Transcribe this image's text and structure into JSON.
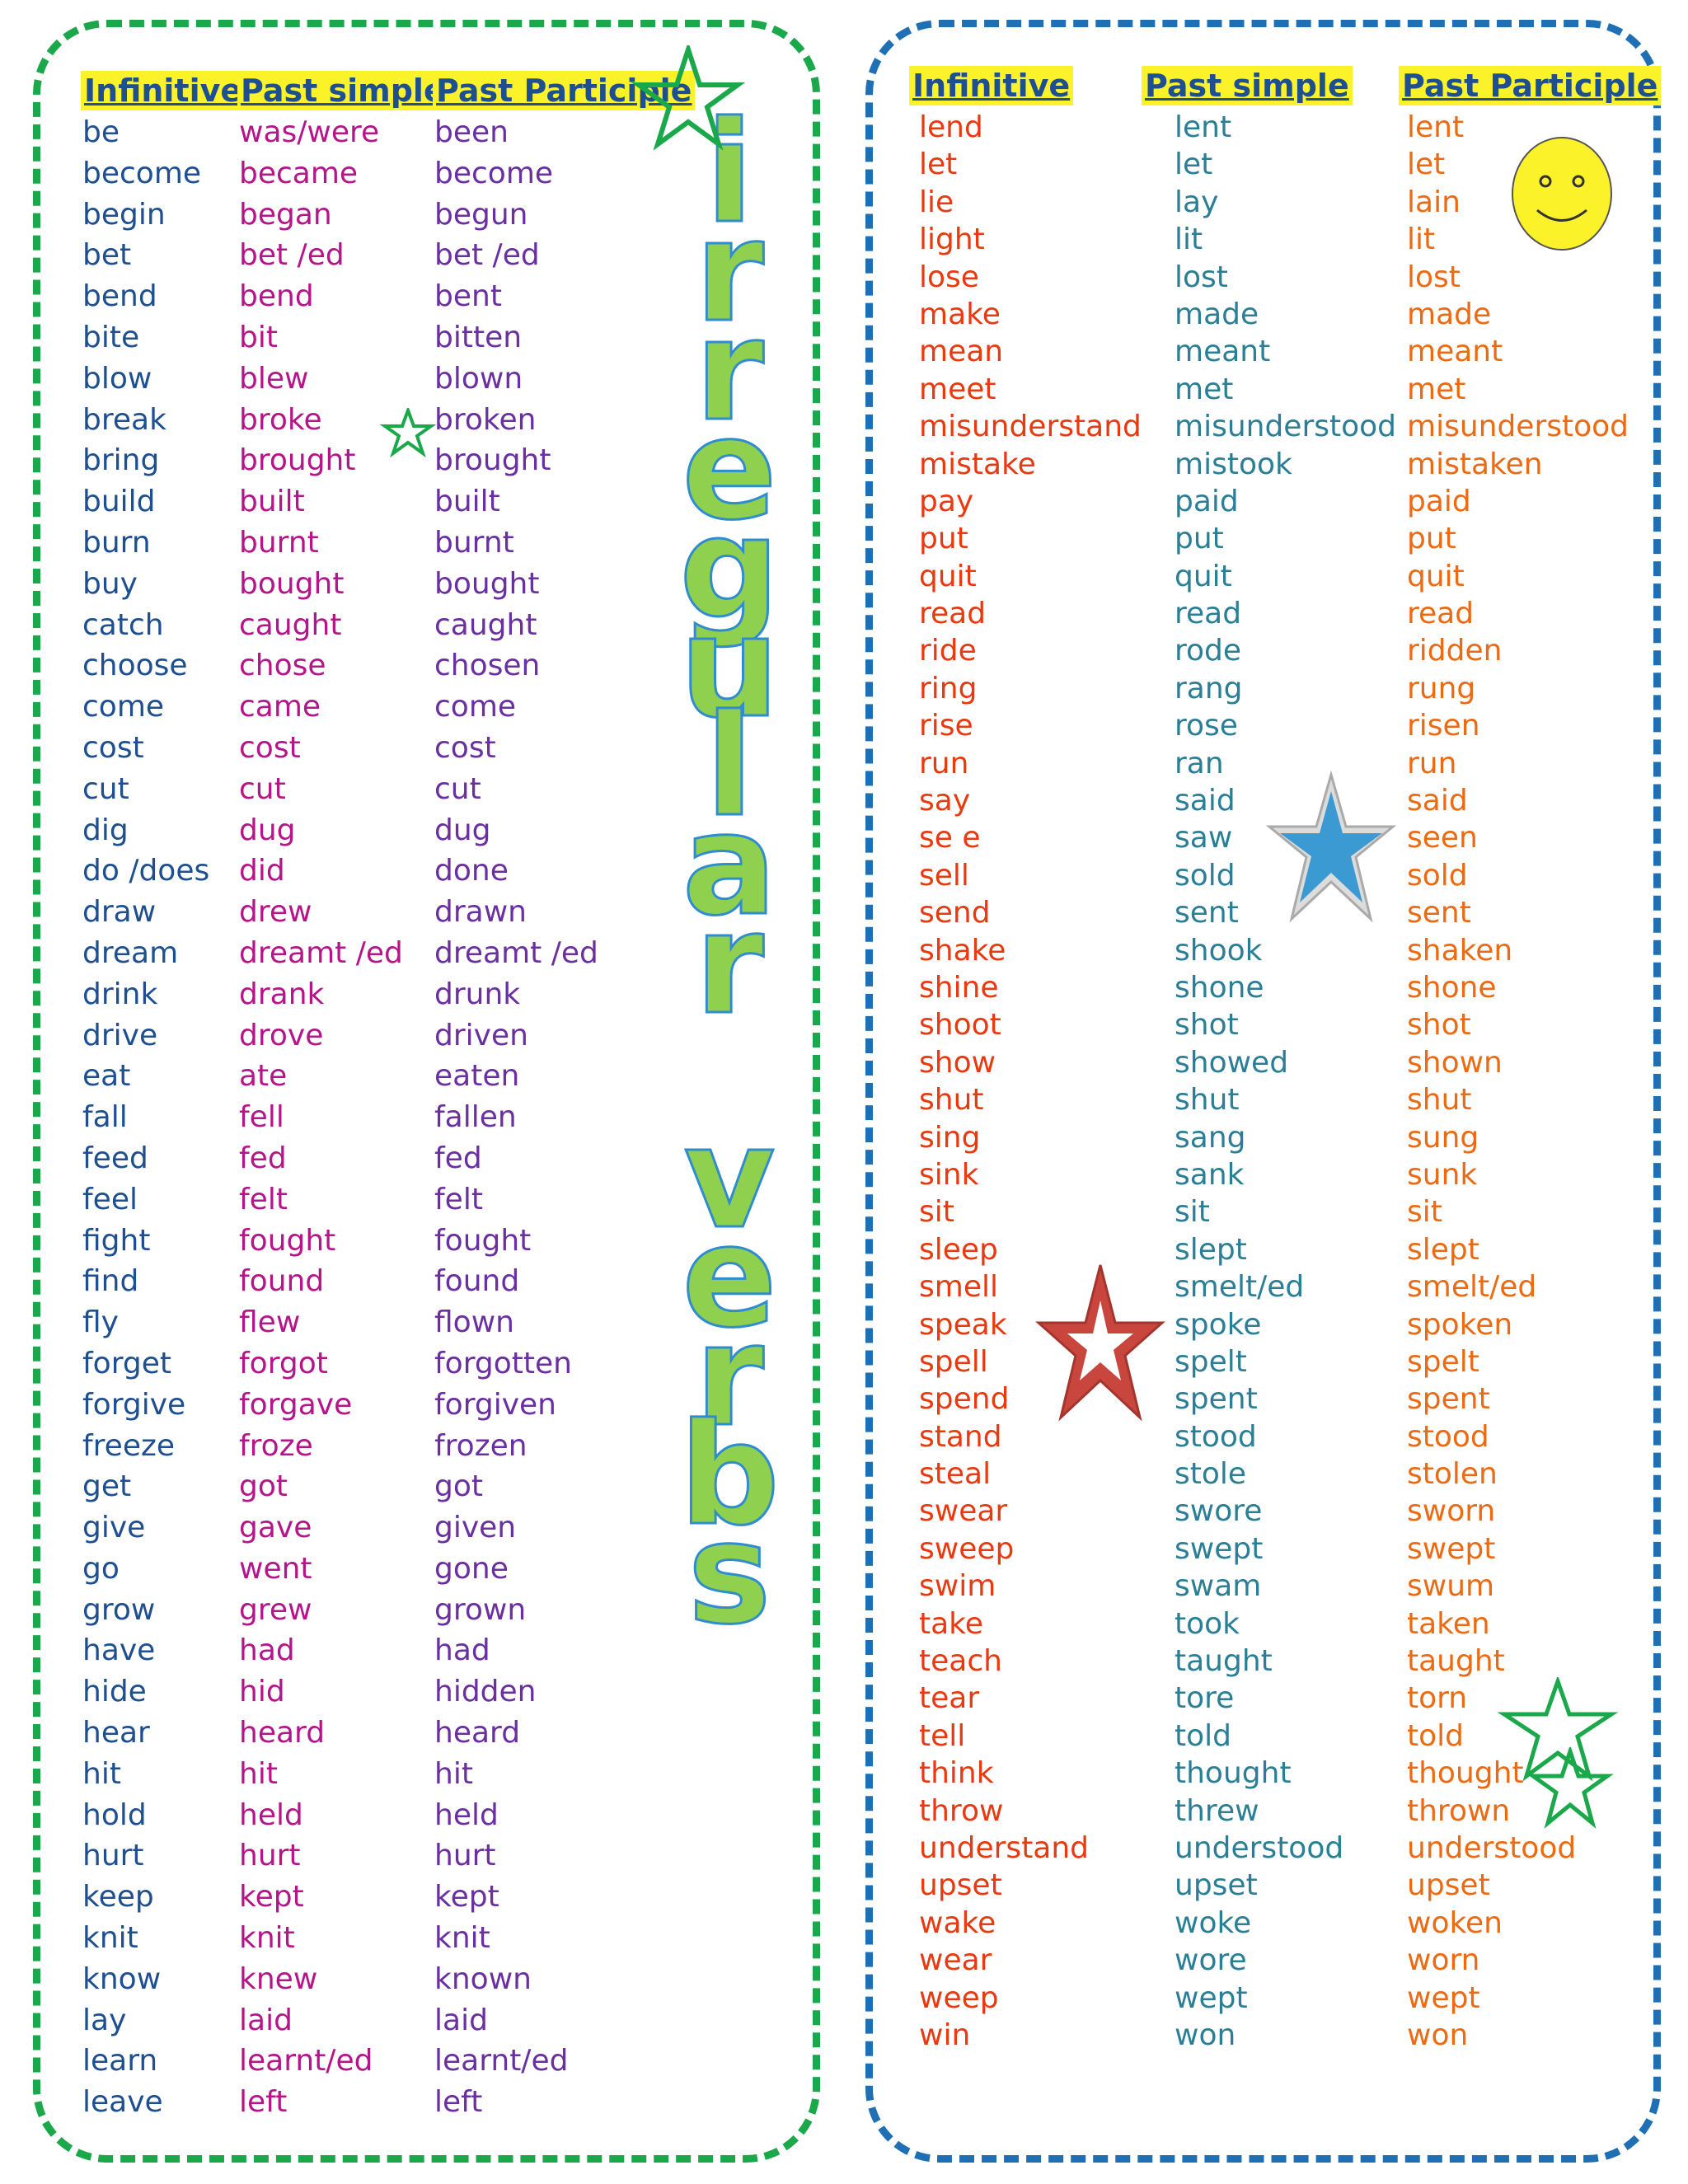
{
  "title": "irregular verbs",
  "headers": {
    "infinitive": "Infinitive",
    "past_simple": "Past simple",
    "past_participle": "Past Participle"
  },
  "left_table": {
    "infinitive": [
      "be",
      "become",
      "begin",
      "bet",
      "bend",
      "bite",
      "blow",
      "break",
      "bring",
      "build",
      "burn",
      "buy",
      "catch",
      "choose",
      "come",
      "cost",
      "cut",
      "dig",
      "do /does",
      "draw",
      "dream",
      "drink",
      "drive",
      "eat",
      "fall",
      "feed",
      "feel",
      "fight",
      "find",
      "fly",
      "forget",
      "forgive",
      "freeze",
      "get",
      "give",
      "go",
      "grow",
      "have",
      "hide",
      "hear",
      "hit",
      "hold",
      "hurt",
      "keep",
      "knit",
      "know",
      "lay",
      "learn",
      "leave"
    ],
    "past_simple": [
      "was/were",
      "became",
      "began",
      "bet /ed",
      "bend",
      "bit",
      "blew",
      "broke",
      "brought",
      "built",
      "burnt",
      "bought",
      "caught",
      "chose",
      "came",
      "cost",
      "cut",
      "dug",
      "did",
      "drew",
      "dreamt /ed",
      "drank",
      "drove",
      "ate",
      "fell",
      "fed",
      "felt",
      "fought",
      "found",
      "flew",
      "forgot",
      "forgave",
      "froze",
      "got",
      "gave",
      "went",
      "grew",
      "had",
      "hid",
      "heard",
      "hit",
      "held",
      "hurt",
      "kept",
      "knit",
      "knew",
      "laid",
      "learnt/ed",
      "left"
    ],
    "past_participle": [
      "been",
      "become",
      "begun",
      "bet /ed",
      "bent",
      "bitten",
      "blown",
      "broken",
      "brought",
      "built",
      "burnt",
      "bought",
      "caught",
      "chosen",
      "come",
      "cost",
      "cut",
      "dug",
      "done",
      "drawn",
      "dreamt /ed",
      "drunk",
      "driven",
      "eaten",
      "fallen",
      "fed",
      "felt",
      "fought",
      "found",
      "flown",
      "forgotten",
      "forgiven",
      "frozen",
      "got",
      "given",
      "gone",
      "grown",
      "had",
      "hidden",
      "heard",
      "hit",
      "held",
      "hurt",
      "kept",
      "knit",
      "known",
      "laid",
      "learnt/ed",
      "left"
    ]
  },
  "right_table": {
    "infinitive": [
      "lend",
      "let",
      "lie",
      "light",
      "lose",
      "make",
      "mean",
      "meet",
      "misunderstand",
      "mistake",
      "pay",
      "put",
      "quit",
      "read",
      "ride",
      "ring",
      "rise",
      "run",
      "say",
      "se e",
      "sell",
      "send",
      "shake",
      "shine",
      "shoot",
      "show",
      "shut",
      "sing",
      "sink",
      "sit",
      "sleep",
      "smell",
      "speak",
      "spell",
      "spend",
      "stand",
      "steal",
      "swear",
      "sweep",
      "swim",
      "take",
      "teach",
      "tear",
      "tell",
      "think",
      "throw",
      "understand",
      "upset",
      "wake",
      "wear",
      "weep",
      "win"
    ],
    "past_simple": [
      "lent",
      "let",
      "lay",
      "lit",
      "lost",
      "made",
      "meant",
      "met",
      "misunderstood",
      "mistook",
      "paid",
      "put",
      "quit",
      "read",
      "rode",
      "rang",
      "rose",
      "ran",
      "said",
      "saw",
      "sold",
      "sent",
      "shook",
      "shone",
      "shot",
      "showed",
      "shut",
      "sang",
      "sank",
      "sit",
      "slept",
      "smelt/ed",
      "spoke",
      "spelt",
      "spent",
      "stood",
      "stole",
      "swore",
      "swept",
      "swam",
      "took",
      "taught",
      "tore",
      "told",
      "thought",
      "threw",
      "understood",
      "upset",
      "woke",
      "wore",
      "wept",
      "won"
    ],
    "past_participle": [
      "lent",
      "let",
      "lain",
      "lit",
      "lost",
      "made",
      "meant",
      "met",
      "misunderstood",
      "mistaken",
      "paid",
      "put",
      "quit",
      "read",
      "ridden",
      "rung",
      "risen",
      "run",
      "said",
      "seen",
      "sold",
      "sent",
      "shaken",
      "shone",
      "shot",
      "shown",
      "shut",
      "sung",
      "sunk",
      "sit",
      "slept",
      "smelt/ed",
      "spoken",
      "spelt",
      "spent",
      "stood",
      "stolen",
      "sworn",
      "swept",
      "swum",
      "taken",
      "taught",
      "torn",
      "told",
      "thought",
      "thrown",
      "understood",
      "upset",
      "woken",
      "worn",
      "wept",
      "won"
    ]
  },
  "colors": {
    "left_border": "#1aa84a",
    "right_border": "#1f6fb5",
    "header_highlight": "#fbf22a",
    "header_text": "#1d4f91",
    "title_fill": "#8fd14f",
    "title_outline": "#2e8ccf"
  },
  "decorations": [
    "star-icon",
    "smiley-icon"
  ]
}
